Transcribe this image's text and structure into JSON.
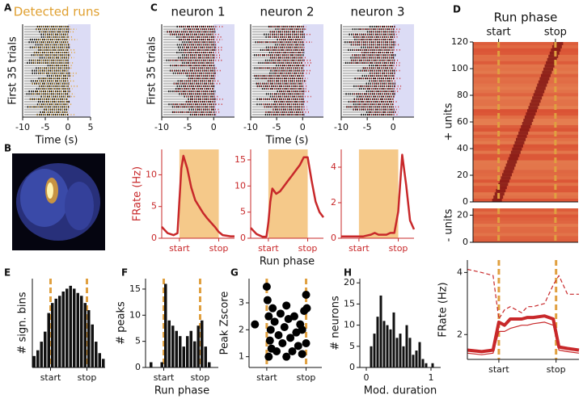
{
  "panel_labels": [
    "A",
    "B",
    "C",
    "D",
    "E",
    "F",
    "G",
    "H"
  ],
  "chart_data": [
    {
      "type": "raster",
      "title": "Detected runs",
      "title_color": "#e0a030",
      "ylabel": "First 35 trials",
      "xlabel": "Time (s)",
      "xlim": [
        -10,
        5
      ],
      "xticks": [
        -10,
        -5,
        0,
        5
      ],
      "color": "#e0a030"
    },
    {
      "type": "raster",
      "title": "neuron 1",
      "ylabel": "First 35 trials",
      "xlim": [
        -10,
        4
      ],
      "xticks": [
        -10,
        -5,
        0
      ],
      "color": "#c8282a"
    },
    {
      "type": "raster",
      "title": "neuron 2",
      "xlabel": "Time (s)",
      "xlim": [
        -10,
        4
      ],
      "xticks": [
        -10,
        -5,
        0
      ],
      "color": "#c8282a"
    },
    {
      "type": "raster",
      "title": "neuron 3",
      "xlim": [
        -10,
        4
      ],
      "xticks": [
        -10,
        -5,
        0
      ],
      "color": "#c8282a"
    },
    {
      "type": "line",
      "ylabel": "FRate (Hz)",
      "axis_color": "#c8282a",
      "span": [
        0,
        1
      ],
      "span_color": "#f5c98a",
      "xlim": [
        -0.45,
        1.4
      ],
      "xticks": [
        {
          "value": 0,
          "label": "start"
        },
        {
          "value": 1,
          "label": "stop"
        }
      ],
      "ylim": [
        0,
        14
      ],
      "yticks": [
        0,
        5,
        10
      ],
      "x": [
        -0.45,
        -0.3,
        -0.15,
        -0.05,
        0,
        0.05,
        0.1,
        0.2,
        0.3,
        0.4,
        0.5,
        0.6,
        0.7,
        0.8,
        0.9,
        1.0,
        1.1,
        1.2,
        1.3,
        1.4
      ],
      "series": [
        {
          "color": "#c8282a",
          "values": [
            1.8,
            0.8,
            0.5,
            0.8,
            6,
            11,
            13,
            11,
            8,
            6,
            5,
            4,
            3.2,
            2.5,
            1.8,
            1,
            0.5,
            0.4,
            0.3,
            0.3
          ]
        }
      ]
    },
    {
      "type": "line",
      "xlabel": "Run phase",
      "axis_color": "#c8282a",
      "span": [
        0,
        1
      ],
      "span_color": "#f5c98a",
      "xlim": [
        -0.45,
        1.4
      ],
      "xticks": [
        {
          "value": 0,
          "label": "start"
        },
        {
          "value": 1,
          "label": "stop"
        }
      ],
      "ylim": [
        0,
        17
      ],
      "yticks": [
        0,
        5,
        10,
        15
      ],
      "x": [
        -0.45,
        -0.3,
        -0.15,
        -0.05,
        0,
        0.05,
        0.1,
        0.2,
        0.3,
        0.4,
        0.5,
        0.6,
        0.7,
        0.8,
        0.9,
        1.0,
        1.1,
        1.2,
        1.3,
        1.4
      ],
      "series": [
        {
          "color": "#c8282a",
          "values": [
            2,
            0.8,
            0.3,
            0.3,
            3,
            7,
            9.5,
            8.5,
            9,
            10,
            11,
            12,
            13,
            14,
            15.5,
            15.5,
            11,
            7,
            5,
            4
          ]
        }
      ]
    },
    {
      "type": "line",
      "axis_color": "#c8282a",
      "span": [
        0,
        1
      ],
      "span_color": "#f5c98a",
      "xlim": [
        -0.45,
        1.4
      ],
      "xticks": [
        {
          "value": 0,
          "label": "start"
        },
        {
          "value": 1,
          "label": "stop"
        }
      ],
      "ylim": [
        0,
        5
      ],
      "yticks": [
        0,
        2,
        4
      ],
      "x": [
        -0.45,
        -0.3,
        -0.15,
        -0.05,
        0,
        0.05,
        0.1,
        0.2,
        0.3,
        0.4,
        0.5,
        0.6,
        0.7,
        0.8,
        0.9,
        1.0,
        1.1,
        1.2,
        1.3,
        1.4
      ],
      "series": [
        {
          "color": "#c8282a",
          "values": [
            0.1,
            0.1,
            0.1,
            0.1,
            0.1,
            0.1,
            0.1,
            0.15,
            0.2,
            0.3,
            0.2,
            0.2,
            0.2,
            0.3,
            0.3,
            1.5,
            4.7,
            3,
            1,
            0.5
          ]
        }
      ]
    },
    {
      "type": "heatmap",
      "title": "Run phase",
      "ylabel": "+ units",
      "xaxis_top": true,
      "xlim": [
        -0.45,
        1.4
      ],
      "xticks": [
        {
          "value": 0,
          "label": "start"
        },
        {
          "value": 1,
          "label": "stop"
        }
      ],
      "ylim": [
        0,
        120
      ],
      "yticks": [
        0,
        20,
        40,
        60,
        80,
        100,
        120
      ],
      "vlines": [
        0,
        1
      ],
      "vline_color": "#e0a040"
    },
    {
      "type": "heatmap",
      "ylabel": "- units",
      "xlim": [
        -0.45,
        1.4
      ],
      "ylim": [
        0,
        25
      ],
      "yticks": [
        0,
        20
      ],
      "vlines": [
        0,
        1
      ],
      "vline_color": "#e0a040"
    },
    {
      "type": "line",
      "ylabel": "FRate (Hz)",
      "xlim": [
        -0.55,
        1.4
      ],
      "xticks": [
        {
          "value": 0,
          "label": "start"
        },
        {
          "value": 1,
          "label": "stop"
        }
      ],
      "ylim": [
        1.2,
        4.4
      ],
      "yticks": [
        2,
        4
      ],
      "vlines": [
        0,
        1
      ],
      "vline_color": "#e0a040",
      "x": [
        -0.55,
        -0.3,
        -0.1,
        0,
        0.1,
        0.2,
        0.4,
        0.5,
        0.6,
        0.8,
        0.95,
        1.05,
        1.2,
        1.4
      ],
      "series": [
        {
          "color": "#c8282a",
          "width": 4,
          "dash": "none",
          "values": [
            1.5,
            1.45,
            1.5,
            2.4,
            2.3,
            2.5,
            2.5,
            2.55,
            2.55,
            2.6,
            2.5,
            1.6,
            1.55,
            1.5
          ]
        },
        {
          "color": "#c8282a",
          "width": 1.2,
          "dash": "none",
          "values": [
            1.4,
            1.35,
            1.4,
            2.1,
            2.1,
            2.2,
            2.3,
            2.3,
            2.35,
            2.4,
            2.3,
            1.5,
            1.45,
            1.4
          ]
        },
        {
          "color": "#c8282a",
          "width": 1.2,
          "dash": "5 3",
          "values": [
            4.1,
            4.0,
            3.9,
            2.5,
            2.8,
            2.9,
            2.7,
            2.9,
            2.9,
            3.0,
            3.6,
            3.9,
            3.3,
            3.3
          ]
        }
      ]
    },
    {
      "type": "histogram",
      "ylabel": "# sign. bins",
      "color": "#111111",
      "xlim": [
        -0.5,
        1.5
      ],
      "xticks": [
        {
          "value": 0,
          "label": "start"
        },
        {
          "value": 1,
          "label": "stop"
        }
      ],
      "ylim": [
        0,
        62
      ],
      "vlines": [
        0,
        1
      ],
      "vline_color": "#e0a040",
      "bins": [
        -0.5,
        -0.4,
        -0.3,
        -0.2,
        -0.1,
        0,
        0.1,
        0.2,
        0.3,
        0.4,
        0.5,
        0.6,
        0.7,
        0.8,
        0.9,
        1.0,
        1.1,
        1.2,
        1.3,
        1.4,
        1.5
      ],
      "values": [
        8,
        12,
        18,
        25,
        38,
        45,
        48,
        50,
        53,
        55,
        57,
        55,
        52,
        50,
        45,
        40,
        30,
        18,
        10,
        6
      ]
    },
    {
      "type": "histogram",
      "ylabel": "# peaks",
      "xlabel": "Run phase",
      "color": "#111111",
      "xlim": [
        -0.5,
        1.5
      ],
      "xticks": [
        {
          "value": 0,
          "label": "start"
        },
        {
          "value": 1,
          "label": "stop"
        }
      ],
      "ylim": [
        0,
        17
      ],
      "yticks": [
        0,
        5,
        10,
        15
      ],
      "vlines": [
        0,
        1
      ],
      "vline_color": "#e0a040",
      "bins": [
        -0.5,
        -0.4,
        -0.3,
        -0.2,
        -0.1,
        0,
        0.1,
        0.2,
        0.3,
        0.4,
        0.5,
        0.6,
        0.7,
        0.8,
        0.9,
        1.0,
        1.1,
        1.2,
        1.3,
        1.4,
        1.5
      ],
      "values": [
        0,
        1,
        0,
        0,
        1,
        16,
        9,
        8,
        7,
        6,
        4,
        6,
        7,
        5,
        8,
        9,
        4,
        1,
        0,
        0
      ]
    },
    {
      "type": "scatter",
      "ylabel": "Peak Zscore",
      "color": "#000000",
      "xlim": [
        -0.45,
        1.4
      ],
      "xticks": [
        {
          "value": 0,
          "label": "start"
        },
        {
          "value": 1,
          "label": "stop"
        }
      ],
      "ylim": [
        0.6,
        3.9
      ],
      "yticks": [
        1,
        2,
        3
      ],
      "vlines": [
        0,
        1
      ],
      "vline_color": "#e0a040",
      "x": [
        -0.3,
        0,
        0.02,
        0.05,
        0.08,
        0.1,
        0.12,
        0.15,
        0.2,
        0.25,
        0.3,
        0.35,
        0.4,
        0.45,
        0.5,
        0.55,
        0.6,
        0.65,
        0.7,
        0.75,
        0.8,
        0.85,
        0.9,
        0.95,
        1.0,
        1.0,
        1.02,
        0.05,
        0.5,
        0.9
      ],
      "values": [
        2.2,
        3.6,
        3.1,
        2.5,
        1.6,
        2.0,
        1.3,
        2.8,
        2.3,
        1.2,
        1.8,
        2.6,
        1.5,
        2.1,
        1.0,
        2.4,
        1.7,
        1.2,
        2.5,
        1.9,
        1.4,
        2.2,
        1.1,
        2.7,
        3.3,
        1.5,
        2.8,
        1.0,
        2.9,
        2.0
      ]
    },
    {
      "type": "histogram",
      "ylabel": "# neurons",
      "xlabel": "Mod. duration",
      "color": "#111111",
      "xlim": [
        -0.1,
        1.15
      ],
      "xticks": [
        0,
        1
      ],
      "ylim": [
        0,
        21
      ],
      "yticks": [
        0,
        5,
        10,
        15,
        20
      ],
      "bins": [
        0.05,
        0.1,
        0.15,
        0.2,
        0.25,
        0.3,
        0.35,
        0.4,
        0.45,
        0.5,
        0.55,
        0.6,
        0.65,
        0.7,
        0.75,
        0.8,
        0.85,
        0.9,
        0.95,
        1.0,
        1.05
      ],
      "values": [
        5,
        8,
        12,
        17,
        11,
        10,
        9,
        13,
        7,
        8,
        5,
        10,
        7,
        3,
        4,
        6,
        2,
        1,
        0,
        1
      ]
    }
  ]
}
